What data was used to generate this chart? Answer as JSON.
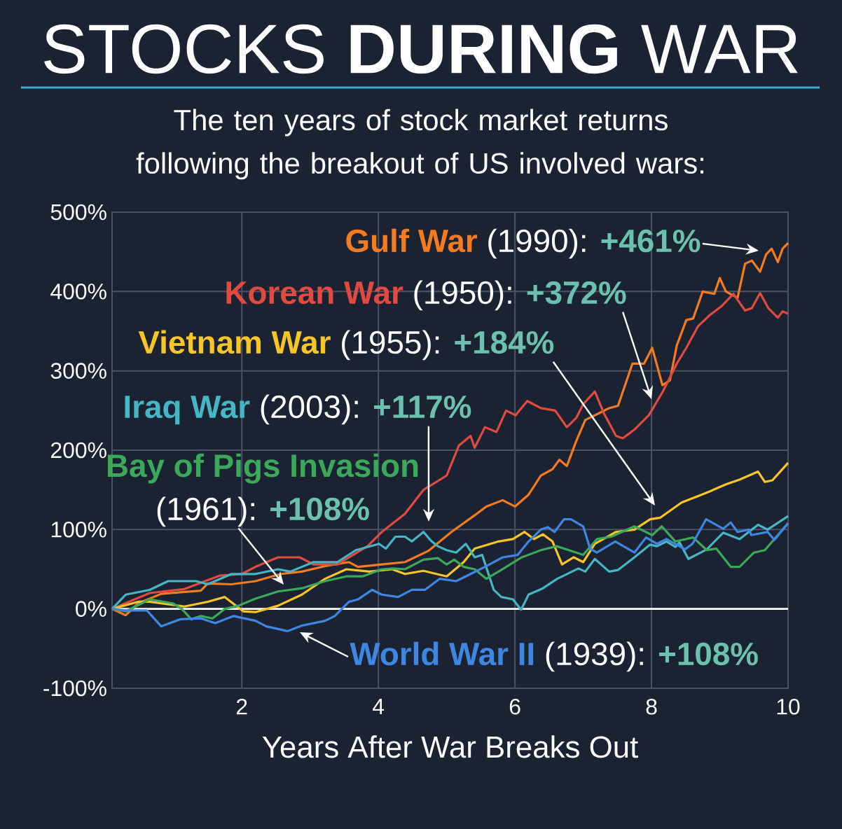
{
  "chart_data": {
    "type": "line",
    "title": "STOCKS **DURING** WAR",
    "subtitle": "The ten years of stock market returns following the breakout of US involved wars:",
    "xlabel": "Years After War Breaks Out",
    "xlim": [
      0.1,
      10
    ],
    "ylim": [
      -100,
      500
    ],
    "xticks": [
      2,
      4,
      6,
      8,
      10
    ],
    "yticks": [
      {
        "value": -100,
        "label": "-100%"
      },
      {
        "value": 0,
        "label": "0%"
      },
      {
        "value": 100,
        "label": "100%"
      },
      {
        "value": 200,
        "label": "200%"
      },
      {
        "value": 300,
        "label": "300%"
      },
      {
        "value": 400,
        "label": "400%"
      },
      {
        "value": 500,
        "label": "500%"
      }
    ],
    "grid": true,
    "ref_lines": [
      {
        "axis": "y",
        "value": 0,
        "color": "#ffffff"
      }
    ],
    "series": [
      {
        "name": "Gulf War",
        "color": "#f47b20",
        "x": [
          0.1,
          0.3,
          0.48,
          0.82,
          1.4,
          1.5,
          1.85,
          2.2,
          2.57,
          2.88,
          3.22,
          3.57,
          3.7,
          4.05,
          4.39,
          4.73,
          5.07,
          5.41,
          5.58,
          5.82,
          6.0,
          6.2,
          6.38,
          6.55,
          6.65,
          6.76,
          6.9,
          7.03,
          7.24,
          7.38,
          7.51,
          7.72,
          7.89,
          8.01,
          8.16,
          8.27,
          8.37,
          8.51,
          8.61,
          8.75,
          8.92,
          9.0,
          9.09,
          9.26,
          9.37,
          9.47,
          9.59,
          9.68,
          9.76,
          9.85,
          9.92,
          10.0
        ],
        "values": [
          0,
          -8,
          7,
          19,
          23,
          32,
          31,
          35,
          44,
          47,
          54,
          59,
          53,
          56,
          59,
          73,
          97,
          118,
          129,
          137,
          129,
          144,
          168,
          176,
          188,
          180,
          212,
          238,
          247,
          253,
          256,
          309,
          309,
          329,
          282,
          288,
          332,
          364,
          366,
          400,
          397,
          417,
          400,
          392,
          435,
          439,
          425,
          447,
          454,
          437,
          454,
          461
        ]
      },
      {
        "name": "Korean War",
        "color": "#e04a40",
        "x": [
          0.1,
          0.65,
          1.16,
          1.68,
          2.0,
          2.2,
          2.53,
          2.85,
          3.05,
          3.4,
          3.84,
          4.05,
          4.39,
          4.66,
          4.83,
          5.0,
          5.18,
          5.35,
          5.41,
          5.56,
          5.73,
          5.87,
          6.01,
          6.18,
          6.38,
          6.59,
          6.76,
          6.9,
          7.0,
          7.17,
          7.3,
          7.48,
          7.58,
          7.75,
          7.96,
          8.16,
          8.37,
          8.51,
          8.68,
          8.85,
          9.02,
          9.2,
          9.37,
          9.47,
          9.59,
          9.71,
          9.85,
          9.92,
          10.0
        ],
        "values": [
          0,
          20,
          25,
          42,
          44,
          53,
          65,
          65,
          56,
          56,
          79,
          97,
          120,
          150,
          159,
          168,
          206,
          218,
          203,
          229,
          223,
          250,
          244,
          262,
          253,
          250,
          229,
          241,
          258,
          274,
          247,
          218,
          215,
          226,
          244,
          273,
          309,
          329,
          356,
          370,
          381,
          397,
          376,
          379,
          398,
          379,
          367,
          375,
          372
        ]
      },
      {
        "name": "Vietnam War",
        "color": "#f8c526",
        "x": [
          0.1,
          0.48,
          0.65,
          1.16,
          1.5,
          1.75,
          2.02,
          2.2,
          2.53,
          2.88,
          3.22,
          3.53,
          3.87,
          4.2,
          4.39,
          4.66,
          5.0,
          5.25,
          5.41,
          5.76,
          5.97,
          6.14,
          6.28,
          6.41,
          6.55,
          6.69,
          6.86,
          7.0,
          7.17,
          7.48,
          7.75,
          7.98,
          8.13,
          8.44,
          8.65,
          8.85,
          9.09,
          9.29,
          9.56,
          9.66,
          9.77,
          10.0
        ],
        "values": [
          0,
          9,
          9,
          3,
          9,
          15,
          -3,
          -4,
          4,
          18,
          38,
          50,
          47,
          50,
          44,
          48,
          41,
          59,
          76,
          85,
          88,
          97,
          88,
          94,
          85,
          56,
          65,
          59,
          82,
          97,
          100,
          113,
          115,
          134,
          141,
          148,
          157,
          163,
          173,
          160,
          162,
          184
        ]
      },
      {
        "name": "Iraq War",
        "color": "#46b6c4",
        "x": [
          0.1,
          0.3,
          0.65,
          0.92,
          1.33,
          1.5,
          1.85,
          2.2,
          2.53,
          2.71,
          3.05,
          3.4,
          3.67,
          4.01,
          4.11,
          4.25,
          4.39,
          4.49,
          4.66,
          4.77,
          4.87,
          5.0,
          5.14,
          5.28,
          5.41,
          5.52,
          5.69,
          5.8,
          5.97,
          6.09,
          6.2,
          6.41,
          6.62,
          6.93,
          7.03,
          7.17,
          7.38,
          7.51,
          7.75,
          7.98,
          8.08,
          8.22,
          8.35,
          8.41,
          8.54,
          8.81,
          9.05,
          9.29,
          9.56,
          9.7,
          10.0
        ],
        "values": [
          0,
          18,
          24,
          35,
          35,
          31,
          44,
          44,
          50,
          47,
          59,
          59,
          74,
          82,
          76,
          91,
          91,
          85,
          97,
          86,
          79,
          74,
          71,
          82,
          65,
          68,
          24,
          15,
          12,
          -1,
          18,
          26,
          38,
          51,
          47,
          63,
          47,
          49,
          65,
          81,
          79,
          85,
          78,
          84,
          63,
          75,
          96,
          88,
          106,
          100,
          117
        ]
      },
      {
        "name": "Bay of Pigs Invasion",
        "color": "#3ba85a",
        "x": [
          0.1,
          0.3,
          0.65,
          0.99,
          1.12,
          1.26,
          1.4,
          1.57,
          1.75,
          1.95,
          2.2,
          2.53,
          2.88,
          3.22,
          3.53,
          3.77,
          4.05,
          4.22,
          4.39,
          4.66,
          4.87,
          5.0,
          5.11,
          5.25,
          5.41,
          5.58,
          5.76,
          6.1,
          6.38,
          6.61,
          6.79,
          7.0,
          7.2,
          7.41,
          7.75,
          8.01,
          8.15,
          8.35,
          8.61,
          8.81,
          8.95,
          9.16,
          9.29,
          9.5,
          9.66,
          10.0
        ],
        "values": [
          0,
          -3,
          12,
          7,
          0,
          -13,
          -9,
          -12,
          0,
          4,
          13,
          22,
          26,
          35,
          41,
          41,
          50,
          51,
          50,
          62,
          64,
          56,
          62,
          53,
          50,
          38,
          47,
          65,
          74,
          79,
          74,
          68,
          88,
          91,
          104,
          93,
          104,
          85,
          90,
          74,
          76,
          53,
          53,
          71,
          74,
          108
        ]
      },
      {
        "name": "World War II",
        "color": "#3f86e2",
        "x": [
          0.1,
          0.3,
          0.61,
          0.82,
          1.1,
          1.4,
          1.61,
          1.88,
          2.2,
          2.36,
          2.67,
          2.88,
          3.22,
          3.36,
          3.57,
          3.7,
          3.91,
          4.05,
          4.29,
          4.49,
          4.68,
          4.9,
          5.14,
          5.35,
          5.56,
          5.82,
          6.04,
          6.2,
          6.38,
          6.48,
          6.58,
          6.72,
          6.82,
          7.0,
          7.1,
          7.2,
          7.47,
          7.75,
          7.92,
          8.08,
          8.22,
          8.49,
          8.6,
          8.8,
          9.05,
          9.16,
          9.26,
          9.43,
          9.46,
          9.7,
          9.8,
          10.0
        ],
        "values": [
          0,
          -2,
          -2,
          -22,
          -13,
          -12,
          -18,
          -9,
          -15,
          -22,
          -28,
          -21,
          -15,
          -9,
          9,
          12,
          24,
          18,
          15,
          24,
          24,
          38,
          35,
          44,
          53,
          65,
          68,
          85,
          100,
          103,
          97,
          113,
          113,
          104,
          76,
          71,
          85,
          71,
          90,
          82,
          88,
          75,
          82,
          113,
          101,
          109,
          97,
          100,
          93,
          97,
          87,
          108
        ]
      }
    ],
    "annotations": [
      "(1990):",
      "+461%",
      "(1950):",
      "+372%",
      "(1955):",
      "+184%",
      "(2003):",
      "+117%",
      "(1961):",
      "+108%",
      "(1939):",
      "+108%"
    ]
  }
}
